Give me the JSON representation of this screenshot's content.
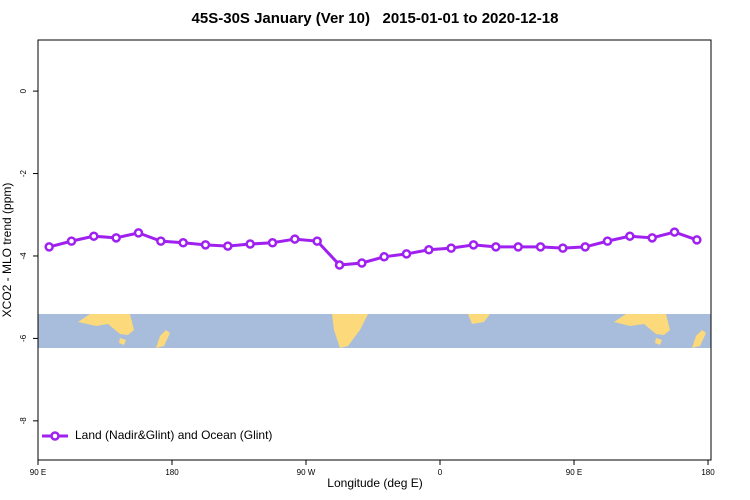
{
  "chart_data": {
    "type": "line",
    "title": "45S-30S January (Ver 10)   2015-01-01 to 2020-12-18",
    "x_label": "Longitude (deg E)",
    "y_label": "XCO2 - MLO trend (ppm)",
    "x": [
      97.5,
      112.5,
      127.5,
      142.5,
      157.5,
      172.5,
      187.5,
      202.5,
      217.5,
      232.5,
      247.5,
      262.5,
      277.5,
      292.5,
      307.5,
      322.5,
      337.5,
      352.5,
      367.5,
      382.5,
      397.5,
      412.5,
      427.5,
      442.5,
      457.5,
      472.5,
      487.5,
      502.5,
      517.5,
      532.5
    ],
    "series": [
      {
        "name": "Land (Nadir&Glint) and Ocean (Glint)",
        "color": "#a020f0",
        "values": [
          -3.78,
          -3.64,
          -3.52,
          -3.56,
          -3.44,
          -3.64,
          -3.68,
          -3.73,
          -3.76,
          -3.71,
          -3.68,
          -3.59,
          -3.64,
          -4.22,
          -4.17,
          -4.02,
          -3.95,
          -3.85,
          -3.81,
          -3.73,
          -3.78,
          -3.78,
          -3.78,
          -3.81,
          -3.78,
          -3.64,
          -3.52,
          -3.56,
          -3.42,
          -3.61
        ]
      }
    ],
    "xlim": [
      90,
      542
    ],
    "ylim": [
      -8.95,
      1.24
    ],
    "xticks": [
      {
        "value": 90,
        "label": "90 E"
      },
      180,
      {
        "value": 270,
        "label": "90 W"
      },
      {
        "value": 360,
        "label": "0"
      },
      {
        "value": 450,
        "label": "90 E"
      },
      {
        "value": 540,
        "label": "180"
      }
    ],
    "yticks": [
      0,
      -2,
      -4,
      -6,
      -8
    ],
    "legend": "bottom-left"
  }
}
